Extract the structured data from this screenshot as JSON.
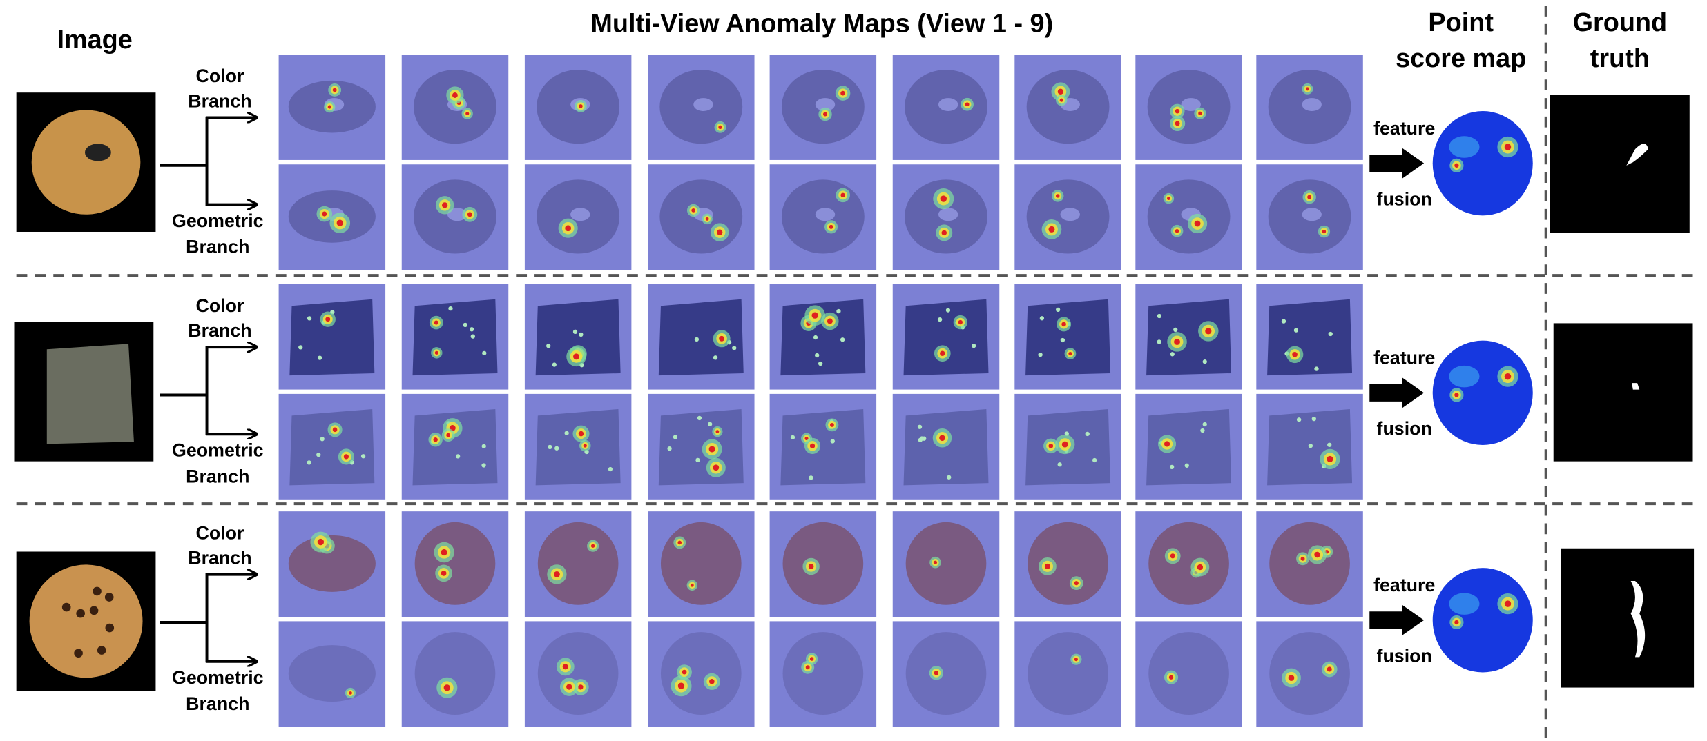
{
  "header": {
    "image": "Image",
    "title": "Multi-View Anomaly Maps (View 1 - 9)",
    "point_score_map": [
      "Point",
      "score map"
    ],
    "ground_truth": [
      "Ground",
      "truth"
    ]
  },
  "rows": [
    {
      "color_branch": [
        "Color",
        "Branch"
      ],
      "geometric_branch": [
        "Geometric",
        "Branch"
      ],
      "fusion_label": [
        "feature",
        "fusion"
      ]
    },
    {
      "color_branch": [
        "Color",
        "Branch"
      ],
      "geometric_branch": [
        "Geometric",
        "Branch"
      ],
      "fusion_label": [
        "feature",
        "fusion"
      ]
    },
    {
      "color_branch": [
        "Color",
        "Branch"
      ],
      "geometric_branch": [
        "Geometric",
        "Branch"
      ],
      "fusion_label": [
        "feature",
        "fusion"
      ]
    }
  ]
}
